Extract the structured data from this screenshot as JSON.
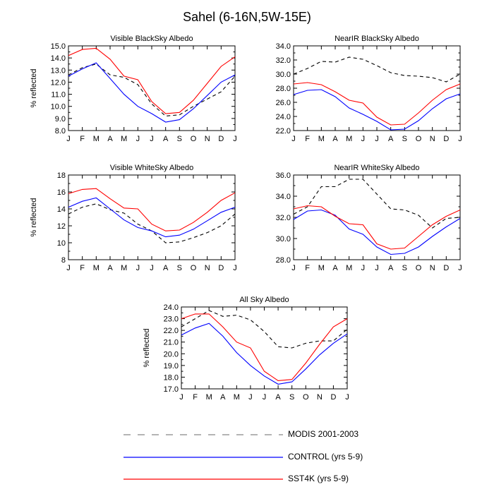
{
  "title": "Sahel (6-16N,5W-15E)",
  "legend": [
    {
      "label": "MODIS 2001-2003",
      "color": "#000000",
      "dash": true
    },
    {
      "label": "CONTROL (yrs 5-9)",
      "color": "#0000ff",
      "dash": false
    },
    {
      "label": "SST4K (yrs 5-9)",
      "color": "#ff0000",
      "dash": false
    }
  ],
  "chart_data": [
    {
      "type": "line",
      "title": "Visible BlackSky Albedo",
      "ylabel": "% reflected",
      "categories": [
        "J",
        "F",
        "M",
        "A",
        "M",
        "J",
        "J",
        "A",
        "S",
        "O",
        "N",
        "D",
        "J"
      ],
      "ylim": [
        8.0,
        15.0
      ],
      "yticks": [
        8.0,
        9.0,
        10.0,
        11.0,
        12.0,
        13.0,
        14.0,
        15.0
      ],
      "ytick_labels": [
        "8.0",
        "9.0",
        "10.0",
        "11.0",
        "12.0",
        "13.0",
        "14.0",
        "15.0"
      ],
      "series": [
        {
          "name": "MODIS 2001-2003",
          "values": [
            12.6,
            13.2,
            13.5,
            12.6,
            12.4,
            11.8,
            10.2,
            9.2,
            9.3,
            10.0,
            10.6,
            11.2,
            12.5
          ]
        },
        {
          "name": "CONTROL (yrs 5-9)",
          "values": [
            12.5,
            13.1,
            13.6,
            12.3,
            11.0,
            10.0,
            9.4,
            8.7,
            8.9,
            9.8,
            10.9,
            12.0,
            12.6
          ]
        },
        {
          "name": "SST4K (yrs 5-9)",
          "values": [
            14.2,
            14.7,
            14.8,
            13.9,
            12.5,
            12.2,
            10.4,
            9.4,
            9.5,
            10.5,
            11.9,
            13.3,
            14.1
          ]
        }
      ]
    },
    {
      "type": "line",
      "title": "NearIR BlackSky Albedo",
      "ylabel": "",
      "categories": [
        "J",
        "F",
        "M",
        "A",
        "M",
        "J",
        "J",
        "A",
        "S",
        "O",
        "N",
        "D",
        "J"
      ],
      "ylim": [
        22.0,
        34.0
      ],
      "yticks": [
        22,
        24,
        26,
        28,
        30,
        32,
        34
      ],
      "ytick_labels": [
        "22.0",
        "24.0",
        "26.0",
        "28.0",
        "30.0",
        "32.0",
        "34.0"
      ],
      "series": [
        {
          "name": "MODIS 2001-2003",
          "values": [
            30.0,
            30.8,
            31.8,
            31.7,
            32.4,
            32.1,
            31.2,
            30.2,
            29.8,
            29.7,
            29.5,
            28.9,
            30.0
          ]
        },
        {
          "name": "CONTROL (yrs 5-9)",
          "values": [
            27.1,
            27.7,
            27.8,
            26.8,
            25.2,
            24.3,
            23.3,
            22.1,
            22.2,
            23.4,
            25.1,
            26.5,
            27.2
          ]
        },
        {
          "name": "SST4K (yrs 5-9)",
          "values": [
            28.6,
            28.8,
            28.5,
            27.5,
            26.3,
            25.9,
            23.9,
            22.8,
            22.9,
            24.5,
            26.3,
            27.8,
            28.6
          ]
        }
      ]
    },
    {
      "type": "line",
      "title": "Visible WhiteSky Albedo",
      "ylabel": "% reflected",
      "categories": [
        "J",
        "F",
        "M",
        "A",
        "M",
        "J",
        "J",
        "A",
        "S",
        "O",
        "N",
        "D",
        "J"
      ],
      "ylim": [
        8,
        18
      ],
      "yticks": [
        8,
        10,
        12,
        14,
        16,
        18
      ],
      "ytick_labels": [
        "8",
        "10",
        "12",
        "14",
        "16",
        "18"
      ],
      "series": [
        {
          "name": "MODIS 2001-2003",
          "values": [
            13.4,
            14.2,
            14.6,
            13.9,
            13.5,
            12.2,
            11.4,
            10.0,
            10.1,
            10.6,
            11.2,
            12.0,
            13.4
          ]
        },
        {
          "name": "CONTROL (yrs 5-9)",
          "values": [
            14.2,
            14.9,
            15.3,
            14.0,
            12.7,
            11.8,
            11.4,
            10.7,
            10.9,
            11.6,
            12.6,
            13.6,
            14.2
          ]
        },
        {
          "name": "SST4K (yrs 5-9)",
          "values": [
            15.8,
            16.3,
            16.4,
            15.2,
            14.1,
            14.0,
            12.2,
            11.4,
            11.5,
            12.4,
            13.6,
            15.0,
            15.9
          ]
        }
      ]
    },
    {
      "type": "line",
      "title": "NearIR WhiteSky Albedo",
      "ylabel": "",
      "categories": [
        "J",
        "F",
        "M",
        "A",
        "M",
        "J",
        "J",
        "A",
        "S",
        "O",
        "N",
        "D",
        "J"
      ],
      "ylim": [
        28.0,
        36.0
      ],
      "yticks": [
        28,
        30,
        32,
        34,
        36
      ],
      "ytick_labels": [
        "28.0",
        "30.0",
        "32.0",
        "34.0",
        "36.0"
      ],
      "series": [
        {
          "name": "MODIS 2001-2003",
          "values": [
            32.3,
            33.0,
            34.9,
            34.9,
            35.6,
            35.6,
            34.2,
            32.8,
            32.7,
            32.2,
            31.0,
            31.9,
            32.0
          ]
        },
        {
          "name": "CONTROL (yrs 5-9)",
          "values": [
            31.8,
            32.6,
            32.7,
            32.2,
            30.9,
            30.4,
            29.2,
            28.5,
            28.6,
            29.2,
            30.2,
            31.1,
            31.9
          ]
        },
        {
          "name": "SST4K (yrs 5-9)",
          "values": [
            32.8,
            33.1,
            33.0,
            32.1,
            31.4,
            31.3,
            29.5,
            29.0,
            29.1,
            30.2,
            31.3,
            32.1,
            32.7
          ]
        }
      ]
    },
    {
      "type": "line",
      "title": "All Sky Albedo",
      "ylabel": "% reflected",
      "categories": [
        "J",
        "F",
        "M",
        "A",
        "M",
        "J",
        "J",
        "A",
        "S",
        "O",
        "N",
        "D",
        "J"
      ],
      "ylim": [
        17.0,
        24.0
      ],
      "yticks": [
        17,
        18,
        19,
        20,
        21,
        22,
        23,
        24
      ],
      "ytick_labels": [
        "17.0",
        "18.0",
        "19.0",
        "20.0",
        "21.0",
        "22.0",
        "23.0",
        "24.0"
      ],
      "series": [
        {
          "name": "MODIS 2001-2003",
          "values": [
            22.3,
            23.0,
            23.7,
            23.2,
            23.3,
            22.9,
            21.9,
            20.6,
            20.5,
            20.9,
            21.1,
            21.1,
            22.1
          ]
        },
        {
          "name": "CONTROL (yrs 5-9)",
          "values": [
            21.6,
            22.2,
            22.6,
            21.5,
            20.1,
            19.0,
            18.1,
            17.4,
            17.6,
            18.7,
            19.9,
            20.9,
            21.7
          ]
        },
        {
          "name": "SST4K (yrs 5-9)",
          "values": [
            23.0,
            23.4,
            23.4,
            22.3,
            21.0,
            20.5,
            18.5,
            17.7,
            17.8,
            19.2,
            20.8,
            22.3,
            23.0
          ]
        }
      ]
    }
  ]
}
